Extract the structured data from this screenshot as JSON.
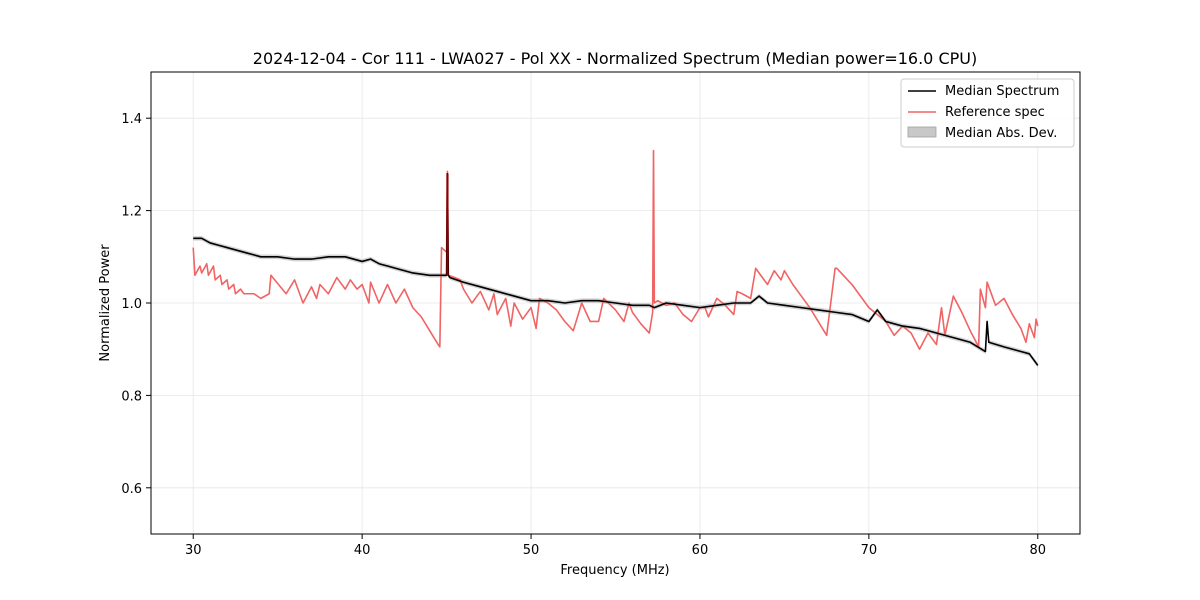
{
  "chart_data": {
    "type": "line",
    "title": "2024-12-04 - Cor 111 - LWA027 - Pol XX - Normalized Spectrum (Median power=16.0 CPU)",
    "xlabel": "Frequency (MHz)",
    "ylabel": "Normalized Power",
    "xlim": [
      27.5,
      82.5
    ],
    "ylim": [
      0.5,
      1.5
    ],
    "xticks": [
      30,
      40,
      50,
      60,
      70,
      80
    ],
    "yticks": [
      0.6,
      0.8,
      1.0,
      1.2,
      1.4
    ],
    "xtick_labels": [
      "30",
      "40",
      "50",
      "60",
      "70",
      "80"
    ],
    "ytick_labels": [
      "0.6",
      "0.8",
      "1.0",
      "1.2",
      "1.4"
    ],
    "grid": true,
    "legend_position": "top-right",
    "legend": [
      "Median Spectrum",
      "Reference spec",
      "Median Abs. Dev."
    ],
    "colors": {
      "median": "#000000",
      "reference": "#f06464",
      "mad": "#c8c8c8",
      "spike": "#8b0000"
    },
    "series": [
      {
        "name": "Median Spectrum",
        "x": [
          30.0,
          30.5,
          31.0,
          31.5,
          32.0,
          33.0,
          34.0,
          35.0,
          36.0,
          37.0,
          38.0,
          39.0,
          40.0,
          40.5,
          41.0,
          41.5,
          42.0,
          43.0,
          44.0,
          45.0,
          45.05,
          45.1,
          45.2,
          46.0,
          47.0,
          48.0,
          49.0,
          50.0,
          51.0,
          52.0,
          53.0,
          54.0,
          55.0,
          56.0,
          57.0,
          57.3,
          58.0,
          59.0,
          60.0,
          61.0,
          62.0,
          63.0,
          63.5,
          64.0,
          65.0,
          66.0,
          67.0,
          68.0,
          69.0,
          70.0,
          70.5,
          71.0,
          72.0,
          73.0,
          74.0,
          75.0,
          76.0,
          76.9,
          77.0,
          77.1,
          78.0,
          79.0,
          79.5,
          80.0
        ],
        "y": [
          1.14,
          1.14,
          1.13,
          1.125,
          1.12,
          1.11,
          1.1,
          1.1,
          1.095,
          1.095,
          1.1,
          1.1,
          1.09,
          1.095,
          1.085,
          1.08,
          1.075,
          1.065,
          1.06,
          1.06,
          1.28,
          1.06,
          1.055,
          1.045,
          1.035,
          1.025,
          1.015,
          1.005,
          1.005,
          1.0,
          1.005,
          1.005,
          1.0,
          0.995,
          0.995,
          0.99,
          1.0,
          0.995,
          0.99,
          0.995,
          1.0,
          1.0,
          1.015,
          1.0,
          0.995,
          0.99,
          0.985,
          0.98,
          0.975,
          0.96,
          0.985,
          0.96,
          0.95,
          0.945,
          0.935,
          0.925,
          0.915,
          0.895,
          0.96,
          0.915,
          0.905,
          0.895,
          0.89,
          0.865
        ],
        "mad": 0.005
      },
      {
        "name": "Reference spec",
        "x": [
          30.0,
          30.1,
          30.4,
          30.5,
          30.8,
          30.9,
          31.2,
          31.3,
          31.6,
          31.7,
          32.0,
          32.1,
          32.4,
          32.5,
          32.8,
          33.0,
          33.6,
          34.0,
          34.5,
          34.6,
          35.5,
          36.0,
          36.5,
          37.0,
          37.3,
          37.5,
          38.0,
          38.5,
          39.0,
          39.3,
          39.7,
          40.0,
          40.4,
          40.5,
          41.0,
          41.5,
          42.0,
          42.5,
          43.0,
          43.5,
          44.0,
          44.5,
          44.6,
          44.7,
          45.0,
          45.05,
          45.1,
          45.5,
          45.8,
          46.0,
          46.5,
          47.0,
          47.5,
          47.8,
          48.0,
          48.5,
          48.8,
          49.0,
          49.5,
          50.0,
          50.3,
          50.5,
          51.0,
          51.5,
          52.0,
          52.5,
          53.0,
          53.5,
          54.0,
          54.3,
          55.0,
          55.5,
          55.8,
          56.0,
          56.5,
          57.0,
          57.2,
          57.25,
          57.3,
          57.5,
          58.0,
          58.5,
          59.0,
          59.5,
          60.0,
          60.3,
          60.5,
          61.0,
          61.5,
          62.0,
          62.2,
          62.5,
          63.0,
          63.3,
          64.0,
          64.4,
          64.8,
          65.0,
          65.5,
          66.0,
          66.5,
          67.5,
          68.0,
          68.1,
          69.0,
          70.0,
          71.0,
          71.5,
          72.0,
          72.5,
          73.0,
          73.5,
          74.0,
          74.3,
          74.5,
          75.0,
          75.5,
          76.0,
          76.5,
          76.6,
          76.9,
          77.0,
          77.5,
          78.0,
          78.5,
          79.0,
          79.3,
          79.5,
          79.8,
          79.9,
          80.0
        ],
        "y": [
          1.12,
          1.06,
          1.08,
          1.065,
          1.085,
          1.06,
          1.08,
          1.05,
          1.06,
          1.04,
          1.05,
          1.03,
          1.04,
          1.02,
          1.03,
          1.02,
          1.02,
          1.01,
          1.02,
          1.06,
          1.02,
          1.05,
          1.0,
          1.035,
          1.01,
          1.04,
          1.02,
          1.055,
          1.03,
          1.05,
          1.03,
          1.04,
          1.0,
          1.045,
          1.0,
          1.04,
          1.0,
          1.03,
          0.99,
          0.97,
          0.94,
          0.91,
          0.905,
          1.12,
          1.11,
          1.285,
          1.06,
          1.055,
          1.05,
          1.03,
          1.0,
          1.025,
          0.985,
          1.02,
          0.975,
          1.01,
          0.95,
          1.0,
          0.965,
          0.99,
          0.945,
          1.01,
          1.0,
          0.985,
          0.96,
          0.94,
          1.0,
          0.96,
          0.96,
          1.01,
          0.985,
          0.96,
          1.0,
          0.98,
          0.955,
          0.935,
          0.98,
          1.33,
          1.0,
          1.005,
          0.995,
          1.0,
          0.975,
          0.96,
          0.99,
          0.99,
          0.97,
          1.01,
          0.995,
          0.975,
          1.025,
          1.02,
          1.01,
          1.075,
          1.04,
          1.07,
          1.05,
          1.07,
          1.04,
          1.015,
          0.99,
          0.93,
          1.075,
          1.075,
          1.04,
          0.99,
          0.96,
          0.93,
          0.95,
          0.935,
          0.9,
          0.935,
          0.91,
          0.99,
          0.93,
          1.015,
          0.98,
          0.94,
          0.905,
          1.03,
          0.99,
          1.045,
          0.995,
          1.01,
          0.975,
          0.945,
          0.915,
          0.955,
          0.925,
          0.965,
          0.95
        ]
      }
    ]
  }
}
